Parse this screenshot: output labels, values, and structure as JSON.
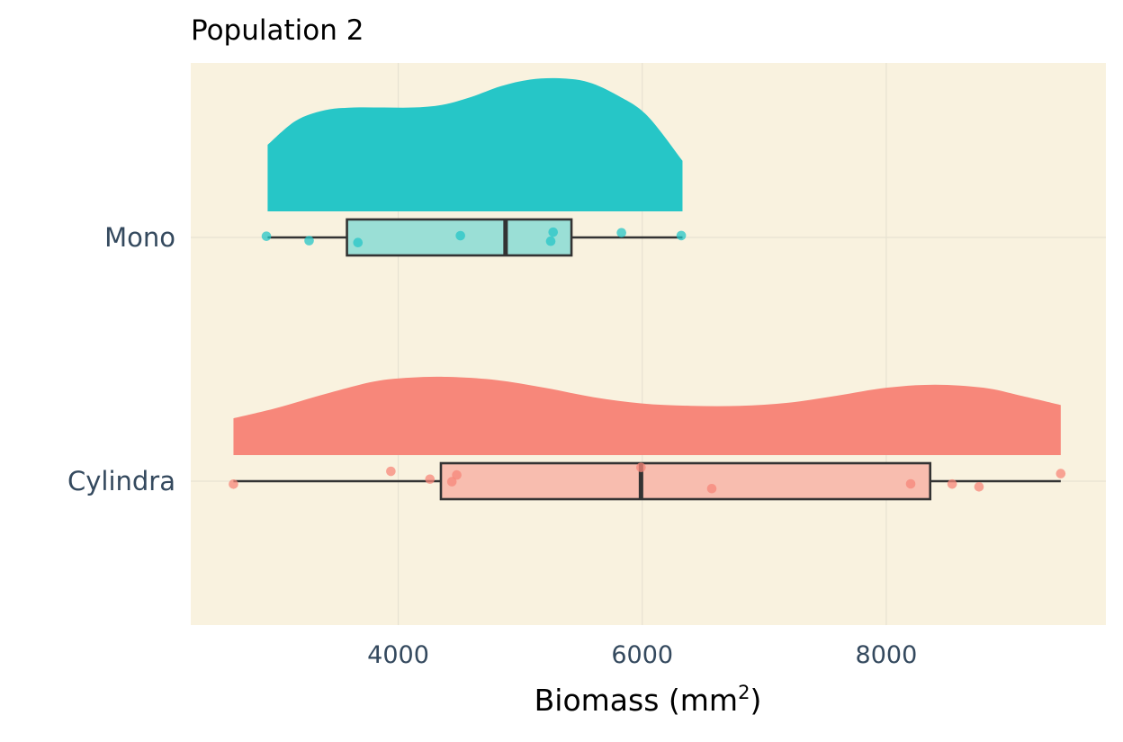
{
  "chart_data": {
    "type": "raincloud",
    "title": "Population 2",
    "xlabel": "Biomass (mm²)",
    "xlabel_base": "Biomass (mm",
    "xlabel_sup": "2",
    "xlabel_tail": ")",
    "ylabel": "",
    "xlim": [
      2300,
      9800
    ],
    "x_ticks": [
      4000,
      6000,
      8000
    ],
    "x_tick_labels": [
      "4000",
      "6000",
      "8000"
    ],
    "grid": true,
    "legend": "none",
    "panel_background": "#f9f2df",
    "series": [
      {
        "name": "Mono",
        "color": "#26c6c7",
        "box_fill": "#9adfd6",
        "box": {
          "min": 2930,
          "q1": 3580,
          "median": 4880,
          "q3": 5420,
          "max": 6330
        },
        "points": [
          2920,
          3270,
          3670,
          4510,
          5250,
          5270,
          5830,
          6320
        ],
        "jitter": [
          0.09,
          -0.24,
          -0.38,
          0.13,
          -0.28,
          0.39,
          0.35,
          0.14
        ],
        "density": {
          "x": [
            2930,
            3160,
            3400,
            3640,
            3880,
            4120,
            4360,
            4600,
            4840,
            5080,
            5320,
            5560,
            5800,
            6040,
            6330
          ],
          "y": [
            0.5,
            0.68,
            0.76,
            0.78,
            0.78,
            0.78,
            0.8,
            0.86,
            0.94,
            0.99,
            1.0,
            0.97,
            0.87,
            0.72,
            0.38
          ]
        }
      },
      {
        "name": "Cylindra",
        "color": "#f7877a",
        "box_fill": "#f8bdaf",
        "box": {
          "min": 2650,
          "q1": 4350,
          "median": 5990,
          "q3": 8360,
          "max": 9430
        },
        "points": [
          2650,
          3940,
          4260,
          4440,
          4480,
          5990,
          6570,
          8200,
          8540,
          8760,
          9430
        ],
        "jitter": [
          -0.22,
          0.73,
          0.15,
          -0.04,
          0.46,
          1.02,
          -0.55,
          -0.2,
          -0.21,
          -0.42,
          0.56
        ],
        "density": {
          "x": [
            2650,
            3000,
            3400,
            3800,
            4100,
            4400,
            4800,
            5200,
            5600,
            6000,
            6400,
            6800,
            7200,
            7600,
            8000,
            8400,
            8800,
            9100,
            9430
          ],
          "y": [
            0.47,
            0.6,
            0.78,
            0.94,
            0.99,
            1.0,
            0.96,
            0.86,
            0.74,
            0.66,
            0.63,
            0.63,
            0.67,
            0.76,
            0.86,
            0.9,
            0.86,
            0.76,
            0.64
          ]
        }
      }
    ]
  }
}
